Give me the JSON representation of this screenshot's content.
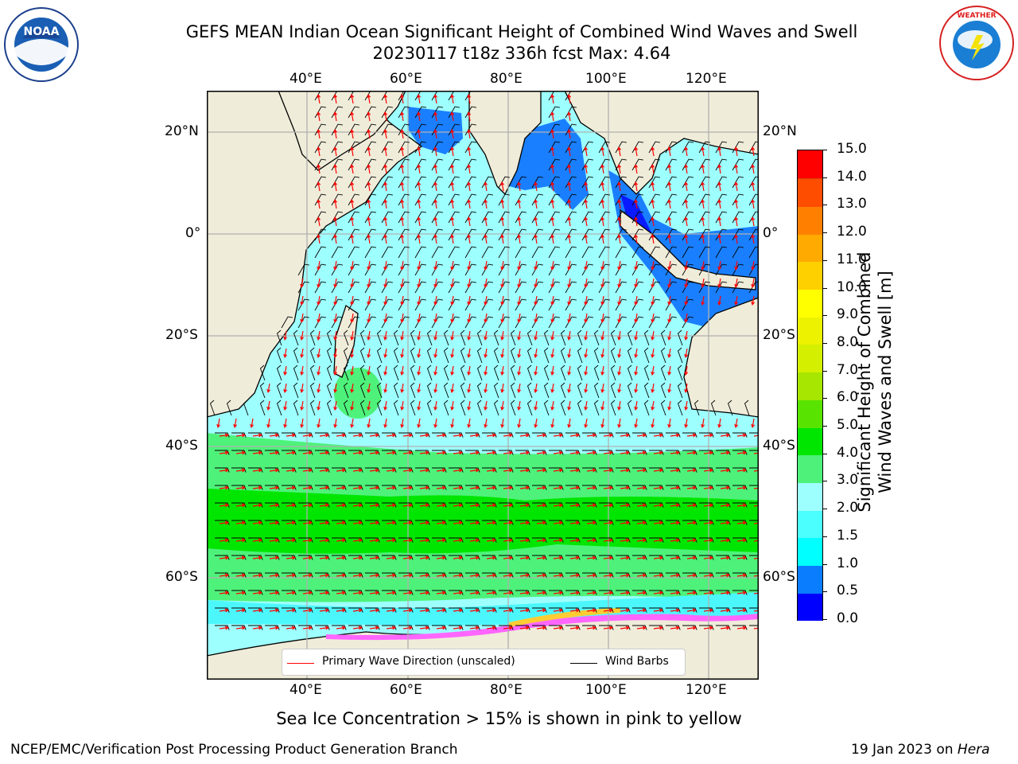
{
  "header": {
    "title_line1": "GEFS MEAN Indian Ocean Significant Height of Combined Wind Waves and Swell",
    "title_line2": "20230117 t18z 336h fcst   Max: 4.64"
  },
  "logos": {
    "left": "NOAA",
    "left_ring_text": "NATIONAL OCEANIC AND ATMOSPHERIC ADMINISTRATION · U.S. DEPARTMENT OF COMMERCE",
    "right_ring_text": "NATIONAL WEATHER SERVICE"
  },
  "map": {
    "lon_labels": [
      "40°E",
      "60°E",
      "80°E",
      "100°E",
      "120°E"
    ],
    "lat_labels_left": [
      "20°N",
      "0°",
      "20°S",
      "40°S",
      "60°S"
    ],
    "lat_labels_right": [
      "20°N",
      "0°",
      "20°S",
      "40°S",
      "60°S"
    ],
    "colors": {
      "land": "#efecd9",
      "sea_low": "#9effff",
      "sea_mid": "#4cf7fc",
      "green_light": "#4ef27a",
      "green": "#00e600",
      "blue": "#1a7fff",
      "blue_dark": "#0a1aff"
    }
  },
  "legend": {
    "primary_wave": "Primary Wave Direction (unscaled)",
    "wind_barbs": "Wind Barbs",
    "primary_color": "#ff0000",
    "barb_color": "#000000"
  },
  "colorbar": {
    "label_line1": "Significant Height of Combined",
    "label_line2": "Wind Waves and Swell [m]",
    "ticks": [
      "0.0",
      "0.5",
      "1.0",
      "1.5",
      "2.0",
      "3.0",
      "4.0",
      "5.0",
      "6.0",
      "7.0",
      "8.0",
      "9.0",
      "10.0",
      "11.0",
      "12.0",
      "13.0",
      "14.0",
      "15.0"
    ],
    "colors": [
      "#0000ff",
      "#0a7dff",
      "#00ffff",
      "#4cffff",
      "#9effff",
      "#4ef27a",
      "#00e600",
      "#58e400",
      "#a6e600",
      "#d4f000",
      "#ecf200",
      "#ffff00",
      "#ffd000",
      "#ffaa00",
      "#ff8000",
      "#ff4d00",
      "#ff0000"
    ]
  },
  "note": "Sea Ice Concentration > 15% is shown in pink to yellow",
  "footer": {
    "left": "NCEP/EMC/Verification Post Processing Product Generation Branch",
    "right_prefix": "19 Jan 2023 on ",
    "right_machine": "Hera"
  }
}
